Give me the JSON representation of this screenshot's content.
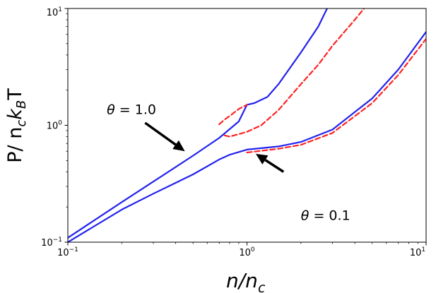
{
  "chart_data": {
    "type": "line",
    "xscale": "log",
    "yscale": "log",
    "xlim": [
      0.1,
      10
    ],
    "ylim": [
      0.1,
      10
    ],
    "x_ticks": [
      {
        "value": 0.1,
        "base": "10",
        "exp": "−1"
      },
      {
        "value": 1,
        "base": "10",
        "exp": "0"
      },
      {
        "value": 10,
        "base": "10",
        "exp": "1"
      }
    ],
    "y_ticks": [
      {
        "value": 0.1,
        "base": "10",
        "exp": "−1"
      },
      {
        "value": 1,
        "base": "10",
        "exp": "0"
      },
      {
        "value": 10,
        "base": "10",
        "exp": "1"
      }
    ],
    "xlabel": {
      "main": "n/n",
      "sub": "c"
    },
    "ylabel": {
      "pre": "P/ n",
      "sub1": "c",
      "mid": "k",
      "sub2": "B",
      "post": "T"
    },
    "grid": false,
    "series": [
      {
        "color": "#2222ee",
        "style": "solid",
        "points": [
          [
            0.1,
            0.109
          ],
          [
            0.2,
            0.22
          ],
          [
            0.3,
            0.33
          ],
          [
            0.5,
            0.55
          ],
          [
            0.7,
            0.78
          ],
          [
            0.9,
            1.08
          ],
          [
            1.0,
            1.5
          ],
          [
            1.1,
            1.55
          ],
          [
            1.3,
            1.75
          ],
          [
            1.5,
            2.25
          ],
          [
            2.0,
            4.2
          ],
          [
            2.5,
            7.0
          ],
          [
            2.8,
            10
          ]
        ]
      },
      {
        "color": "#ff2222",
        "style": "dashed",
        "points": [
          [
            0.7,
            1.02
          ],
          [
            0.75,
            1.12
          ],
          [
            0.8,
            1.2
          ],
          [
            0.9,
            1.38
          ],
          [
            1.0,
            1.5
          ]
        ]
      },
      {
        "color": "#ff2222",
        "style": "dashed",
        "points": [
          [
            0.75,
            0.82
          ],
          [
            0.8,
            0.8
          ],
          [
            0.9,
            0.84
          ],
          [
            1.0,
            0.88
          ],
          [
            1.2,
            1.0
          ],
          [
            1.5,
            1.35
          ],
          [
            2.0,
            2.25
          ],
          [
            2.5,
            3.3
          ],
          [
            3.0,
            4.8
          ],
          [
            4.0,
            8.0
          ],
          [
            4.5,
            10
          ]
        ]
      },
      {
        "color": "#2222ee",
        "style": "solid",
        "points": [
          [
            0.1,
            0.1
          ],
          [
            0.2,
            0.19
          ],
          [
            0.3,
            0.26
          ],
          [
            0.5,
            0.38
          ],
          [
            0.7,
            0.51
          ],
          [
            0.8,
            0.56
          ],
          [
            1.0,
            0.62
          ],
          [
            1.5,
            0.66
          ],
          [
            2.0,
            0.72
          ],
          [
            3.0,
            0.92
          ],
          [
            5.0,
            1.7
          ],
          [
            7.0,
            3.0
          ],
          [
            10.0,
            6.3
          ]
        ]
      },
      {
        "color": "#ff2222",
        "style": "dashed",
        "points": [
          [
            1.0,
            0.585
          ],
          [
            1.5,
            0.63
          ],
          [
            2.0,
            0.68
          ],
          [
            3.0,
            0.86
          ],
          [
            5.0,
            1.55
          ],
          [
            7.0,
            2.7
          ],
          [
            10.0,
            5.5
          ]
        ]
      }
    ],
    "annotations": [
      {
        "symbol": "θ",
        "value": "= 1.0",
        "text_at": [
          0.165,
          1.25
        ],
        "arrow_from": [
          0.27,
          1.05
        ],
        "arrow_to": [
          0.45,
          0.6
        ]
      },
      {
        "symbol": "θ",
        "value": "= 0.1",
        "text_at": [
          2.0,
          0.155
        ],
        "arrow_from": [
          1.6,
          0.4
        ],
        "arrow_to": [
          1.12,
          0.57
        ]
      }
    ]
  }
}
